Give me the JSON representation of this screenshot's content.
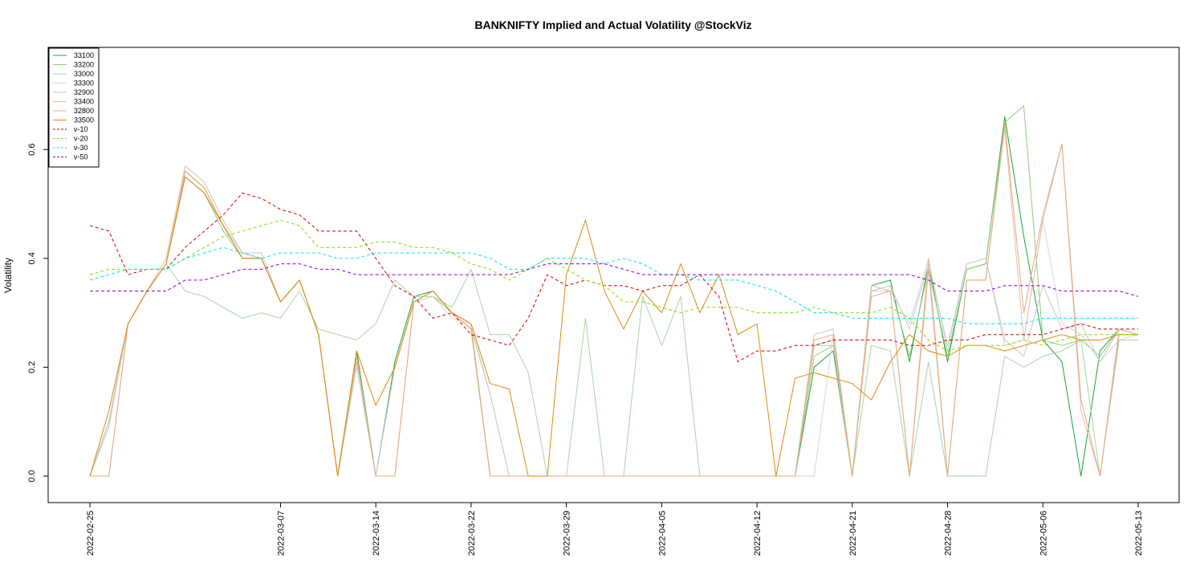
{
  "chart_data": {
    "type": "line",
    "title": "BANKNIFTY Implied and Actual Volatility @StockViz",
    "xlabel": "",
    "ylabel": "Volatility",
    "ylim": [
      -0.05,
      0.78
    ],
    "yticks": [
      0.0,
      0.2,
      0.4,
      0.6
    ],
    "ytick_labels": [
      "0.0",
      "0.2",
      "0.4",
      "0.6"
    ],
    "xtick_labels": [
      "2022-02-25",
      "2022-03-07",
      "2022-03-14",
      "2022-03-22",
      "2022-03-29",
      "2022-04-05",
      "2022-04-12",
      "2022-04-21",
      "2022-04-28",
      "2022-05-06",
      "2022-05-13"
    ],
    "xtick_index": [
      0,
      10,
      15,
      20,
      25,
      30,
      35,
      40,
      45,
      50,
      55
    ],
    "x_count": 56,
    "legend_position": "top-left",
    "series": [
      {
        "name": "33100",
        "color": "#1aa33a",
        "dash": "solid",
        "values": [
          0.0,
          0.1,
          0.28,
          0.34,
          0.39,
          0.56,
          0.53,
          0.46,
          0.41,
          0.4,
          0.32,
          0.36,
          0.26,
          0.0,
          0.23,
          0.0,
          0.21,
          0.33,
          0.34,
          0.3,
          0.27,
          0.0,
          0.0,
          0.0,
          0.0,
          0.0,
          0.0,
          0.0,
          0.0,
          0.0,
          0.0,
          0.0,
          0.0,
          0.0,
          0.0,
          0.0,
          0.0,
          0.0,
          0.2,
          0.23,
          0.0,
          0.35,
          0.36,
          0.21,
          0.39,
          0.21,
          0.38,
          0.39,
          0.66,
          0.44,
          0.25,
          0.21,
          0.0,
          0.23,
          0.27,
          0.26
        ]
      },
      {
        "name": "33200",
        "color": "#8ccf7e",
        "dash": "solid",
        "values": [
          0.0,
          0.09,
          0.28,
          0.34,
          0.39,
          0.55,
          0.52,
          0.45,
          0.4,
          0.4,
          0.32,
          0.36,
          0.26,
          0.0,
          0.21,
          0.0,
          0.2,
          0.32,
          0.33,
          0.3,
          0.27,
          0.0,
          0.0,
          0.0,
          0.0,
          0.0,
          0.0,
          0.0,
          0.0,
          0.0,
          0.0,
          0.0,
          0.0,
          0.0,
          0.0,
          0.0,
          0.0,
          0.0,
          0.22,
          0.24,
          0.0,
          0.34,
          0.35,
          0.22,
          0.38,
          0.22,
          0.38,
          0.39,
          0.65,
          0.68,
          0.25,
          0.24,
          0.25,
          0.22,
          0.27,
          0.26
        ]
      },
      {
        "name": "33000",
        "color": "#a9d4a9",
        "dash": "solid",
        "values": [
          0.0,
          0.1,
          0.28,
          0.34,
          0.39,
          0.34,
          0.33,
          0.31,
          0.29,
          0.3,
          0.29,
          0.34,
          0.27,
          0.26,
          0.25,
          0.28,
          0.36,
          0.33,
          0.33,
          0.31,
          0.38,
          0.26,
          0.26,
          0.19,
          0.0,
          0.0,
          0.29,
          0.0,
          0.0,
          0.33,
          0.24,
          0.33,
          0.0,
          0.0,
          0.0,
          0.0,
          0.0,
          0.0,
          0.24,
          0.24,
          0.0,
          0.24,
          0.23,
          0.0,
          0.21,
          0.0,
          0.0,
          0.0,
          0.22,
          0.2,
          0.22,
          0.23,
          0.25,
          0.0,
          0.25,
          0.25
        ]
      },
      {
        "name": "33300",
        "color": "#d6d6d6",
        "dash": "solid",
        "values": [
          0.0,
          0.09,
          0.28,
          0.34,
          0.39,
          0.56,
          0.53,
          0.46,
          0.41,
          0.4,
          0.32,
          0.36,
          0.26,
          0.0,
          0.2,
          0.0,
          0.2,
          0.32,
          0.33,
          0.29,
          0.28,
          0.15,
          0.0,
          0.0,
          0.0,
          0.0,
          0.0,
          0.0,
          0.0,
          0.0,
          0.0,
          0.0,
          0.0,
          0.0,
          0.0,
          0.0,
          0.0,
          0.0,
          0.0,
          0.26,
          0.0,
          0.34,
          0.34,
          0.28,
          0.4,
          0.23,
          0.39,
          0.4,
          0.24,
          0.25,
          0.47,
          0.28,
          0.26,
          0.21,
          0.25,
          0.26
        ]
      },
      {
        "name": "32900",
        "color": "#c9c9c9",
        "dash": "solid",
        "values": [
          0.0,
          0.1,
          0.28,
          0.34,
          0.39,
          0.55,
          0.52,
          0.46,
          0.4,
          0.4,
          0.32,
          0.36,
          0.26,
          0.0,
          0.21,
          0.0,
          0.2,
          0.32,
          0.34,
          0.3,
          0.27,
          0.15,
          0.0,
          0.0,
          0.0,
          0.0,
          0.0,
          0.0,
          0.0,
          0.0,
          0.0,
          0.0,
          0.0,
          0.0,
          0.0,
          0.0,
          0.0,
          0.0,
          0.24,
          0.25,
          0.0,
          0.34,
          0.35,
          0.27,
          0.39,
          0.24,
          0.39,
          0.4,
          0.25,
          0.22,
          0.35,
          0.27,
          0.28,
          0.21,
          0.27,
          0.26
        ]
      },
      {
        "name": "33400",
        "color": "#e3bfa6",
        "dash": "solid",
        "values": [
          0.0,
          0.0,
          0.28,
          0.34,
          0.4,
          0.57,
          0.54,
          0.47,
          0.41,
          0.41,
          0.32,
          0.36,
          0.26,
          0.0,
          0.22,
          0.0,
          0.0,
          0.32,
          0.34,
          0.3,
          0.28,
          0.0,
          0.0,
          0.0,
          0.0,
          0.0,
          0.0,
          0.0,
          0.0,
          0.0,
          0.0,
          0.0,
          0.0,
          0.0,
          0.0,
          0.0,
          0.0,
          0.0,
          0.26,
          0.27,
          0.0,
          0.35,
          0.34,
          0.0,
          0.4,
          0.0,
          0.36,
          0.36,
          0.64,
          0.25,
          0.47,
          0.61,
          0.12,
          0.0,
          0.27,
          0.26
        ]
      },
      {
        "name": "32800",
        "color": "#e8a97a",
        "dash": "solid",
        "values": [
          0.0,
          0.0,
          0.28,
          0.34,
          0.39,
          0.56,
          0.53,
          0.46,
          0.4,
          0.4,
          0.32,
          0.36,
          0.26,
          0.0,
          0.22,
          0.0,
          0.0,
          0.32,
          0.34,
          0.3,
          0.27,
          0.0,
          0.0,
          0.0,
          0.0,
          0.0,
          0.0,
          0.0,
          0.0,
          0.0,
          0.0,
          0.0,
          0.0,
          0.0,
          0.0,
          0.0,
          0.0,
          0.0,
          0.25,
          0.26,
          0.0,
          0.33,
          0.34,
          0.0,
          0.38,
          0.0,
          0.36,
          0.36,
          0.65,
          0.3,
          0.48,
          0.61,
          0.14,
          0.0,
          0.26,
          0.26
        ]
      },
      {
        "name": "33500",
        "color": "#e08a0a",
        "dash": "solid",
        "values": [
          0.0,
          0.12,
          0.28,
          0.34,
          0.39,
          0.55,
          0.52,
          0.46,
          0.4,
          0.4,
          0.32,
          0.36,
          0.26,
          0.0,
          0.23,
          0.13,
          0.2,
          0.32,
          0.34,
          0.3,
          0.28,
          0.17,
          0.16,
          0.0,
          0.0,
          0.37,
          0.47,
          0.34,
          0.27,
          0.34,
          0.3,
          0.39,
          0.3,
          0.37,
          0.26,
          0.28,
          0.0,
          0.18,
          0.19,
          0.18,
          0.17,
          0.14,
          0.21,
          0.26,
          0.23,
          0.22,
          0.24,
          0.24,
          0.23,
          0.24,
          0.25,
          0.26,
          0.25,
          0.25,
          0.26,
          0.26
        ]
      },
      {
        "name": "v-10",
        "color": "#d40000",
        "dash": "4,3",
        "values": [
          0.46,
          0.45,
          0.37,
          0.38,
          0.38,
          0.42,
          0.45,
          0.48,
          0.52,
          0.51,
          0.49,
          0.48,
          0.45,
          0.45,
          0.45,
          0.4,
          0.35,
          0.33,
          0.29,
          0.3,
          0.26,
          0.25,
          0.24,
          0.29,
          0.37,
          0.35,
          0.36,
          0.35,
          0.35,
          0.34,
          0.35,
          0.35,
          0.37,
          0.33,
          0.21,
          0.23,
          0.23,
          0.24,
          0.24,
          0.25,
          0.25,
          0.25,
          0.25,
          0.24,
          0.24,
          0.25,
          0.25,
          0.26,
          0.26,
          0.26,
          0.26,
          0.27,
          0.28,
          0.27,
          0.27,
          0.27
        ]
      },
      {
        "name": "v-20",
        "color": "#88dd00",
        "dash": "4,3",
        "values": [
          0.37,
          0.38,
          0.38,
          0.38,
          0.38,
          0.4,
          0.42,
          0.44,
          0.45,
          0.46,
          0.47,
          0.46,
          0.42,
          0.42,
          0.42,
          0.43,
          0.43,
          0.42,
          0.42,
          0.41,
          0.39,
          0.38,
          0.36,
          0.38,
          0.4,
          0.38,
          0.36,
          0.35,
          0.32,
          0.32,
          0.31,
          0.3,
          0.31,
          0.31,
          0.31,
          0.3,
          0.3,
          0.3,
          0.31,
          0.3,
          0.3,
          0.3,
          0.31,
          0.29,
          0.25,
          0.23,
          0.24,
          0.24,
          0.24,
          0.25,
          0.24,
          0.25,
          0.26,
          0.26,
          0.26,
          0.26
        ]
      },
      {
        "name": "v-30",
        "color": "#00e5ee",
        "dash": "4,3",
        "values": [
          0.36,
          0.37,
          0.38,
          0.38,
          0.38,
          0.4,
          0.41,
          0.42,
          0.41,
          0.4,
          0.41,
          0.41,
          0.41,
          0.4,
          0.4,
          0.41,
          0.41,
          0.41,
          0.41,
          0.41,
          0.41,
          0.4,
          0.38,
          0.38,
          0.4,
          0.4,
          0.4,
          0.39,
          0.4,
          0.39,
          0.37,
          0.37,
          0.36,
          0.36,
          0.36,
          0.35,
          0.34,
          0.32,
          0.3,
          0.3,
          0.29,
          0.29,
          0.29,
          0.29,
          0.29,
          0.29,
          0.28,
          0.28,
          0.28,
          0.28,
          0.29,
          0.29,
          0.29,
          0.29,
          0.29,
          0.29
        ]
      },
      {
        "name": "v-50",
        "color": "#8a00d4",
        "dash": "4,3",
        "values": [
          0.34,
          0.34,
          0.34,
          0.34,
          0.34,
          0.36,
          0.36,
          0.37,
          0.38,
          0.38,
          0.39,
          0.39,
          0.38,
          0.38,
          0.37,
          0.37,
          0.37,
          0.37,
          0.37,
          0.37,
          0.37,
          0.37,
          0.37,
          0.38,
          0.39,
          0.39,
          0.39,
          0.39,
          0.38,
          0.37,
          0.37,
          0.37,
          0.37,
          0.37,
          0.37,
          0.37,
          0.37,
          0.37,
          0.37,
          0.37,
          0.37,
          0.37,
          0.37,
          0.37,
          0.36,
          0.34,
          0.34,
          0.34,
          0.35,
          0.35,
          0.35,
          0.34,
          0.34,
          0.34,
          0.34,
          0.33
        ]
      }
    ]
  }
}
